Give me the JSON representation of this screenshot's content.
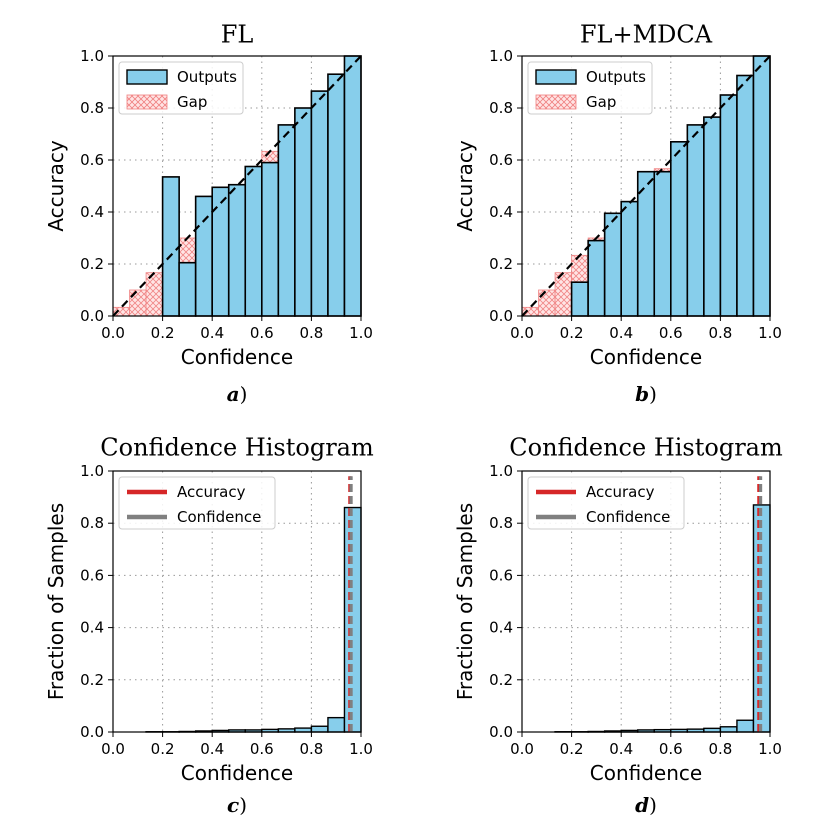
{
  "colors": {
    "outputs_fill": "#87ceeb",
    "gap_fill": "#ffd6d6",
    "gap_edge": "#f08080",
    "accuracy_line": "#d62728",
    "confidence_line": "#808080",
    "grid": "#999999"
  },
  "chart_data": [
    {
      "id": "a",
      "type": "bar",
      "title": "FL",
      "xlabel": "Confidence",
      "ylabel": "Accuracy",
      "caption_letter": "a",
      "caption_suffix": ")",
      "xlim": [
        0,
        1
      ],
      "ylim": [
        0,
        1
      ],
      "xticks": [
        "0.0",
        "0.2",
        "0.4",
        "0.6",
        "0.8",
        "1.0"
      ],
      "yticks": [
        "0.0",
        "0.2",
        "0.4",
        "0.6",
        "0.8",
        "1.0"
      ],
      "grid": true,
      "legend": {
        "placement": "top-left",
        "entries": [
          "Outputs",
          "Gap"
        ]
      },
      "bin_width": 0.0667,
      "bin_starts": [
        0.0,
        0.0667,
        0.1333,
        0.2,
        0.2667,
        0.3333,
        0.4,
        0.4667,
        0.5333,
        0.6,
        0.6667,
        0.7333,
        0.8,
        0.8667,
        0.9333
      ],
      "values": [
        0.0,
        0.0,
        0.0,
        0.535,
        0.205,
        0.46,
        0.495,
        0.505,
        0.575,
        0.59,
        0.735,
        0.8,
        0.865,
        0.93,
        1.0
      ]
    },
    {
      "id": "b",
      "type": "bar",
      "title": "FL+MDCA",
      "xlabel": "Confidence",
      "ylabel": "Accuracy",
      "caption_letter": "b",
      "caption_suffix": ")",
      "xlim": [
        0,
        1
      ],
      "ylim": [
        0,
        1
      ],
      "xticks": [
        "0.0",
        "0.2",
        "0.4",
        "0.6",
        "0.8",
        "1.0"
      ],
      "yticks": [
        "0.0",
        "0.2",
        "0.4",
        "0.6",
        "0.8",
        "1.0"
      ],
      "grid": true,
      "legend": {
        "placement": "top-left",
        "entries": [
          "Outputs",
          "Gap"
        ]
      },
      "bin_width": 0.0667,
      "bin_starts": [
        0.0,
        0.0667,
        0.1333,
        0.2,
        0.2667,
        0.3333,
        0.4,
        0.4667,
        0.5333,
        0.6,
        0.6667,
        0.7333,
        0.8,
        0.8667,
        0.9333
      ],
      "values": [
        0.0,
        0.0,
        0.0,
        0.13,
        0.29,
        0.395,
        0.44,
        0.555,
        0.555,
        0.67,
        0.735,
        0.765,
        0.85,
        0.925,
        1.0
      ]
    },
    {
      "id": "c",
      "type": "histogram",
      "title": "Confidence Histogram",
      "xlabel": "Confidence",
      "ylabel": "Fraction of Samples",
      "caption_letter": "c",
      "caption_suffix": ")",
      "xlim": [
        0,
        1
      ],
      "ylim": [
        0,
        1
      ],
      "xticks": [
        "0.0",
        "0.2",
        "0.4",
        "0.6",
        "0.8",
        "1.0"
      ],
      "yticks": [
        "0.0",
        "0.2",
        "0.4",
        "0.6",
        "0.8",
        "1.0"
      ],
      "grid": true,
      "legend": {
        "placement": "top-left",
        "entries": [
          "Accuracy",
          "Confidence"
        ]
      },
      "bin_width": 0.0667,
      "bin_starts": [
        0.0,
        0.0667,
        0.1333,
        0.2,
        0.2667,
        0.3333,
        0.4,
        0.4667,
        0.5333,
        0.6,
        0.6667,
        0.7333,
        0.8,
        0.8667,
        0.9333
      ],
      "values": [
        0.0,
        0.0,
        0.001,
        0.001,
        0.002,
        0.004,
        0.006,
        0.008,
        0.008,
        0.01,
        0.012,
        0.015,
        0.022,
        0.055,
        0.86
      ],
      "accuracy": 0.955,
      "confidence": 0.96
    },
    {
      "id": "d",
      "type": "histogram",
      "title": "Confidence Histogram",
      "xlabel": "Confidence",
      "ylabel": "Fraction of Samples",
      "caption_letter": "d",
      "caption_suffix": ")",
      "xlim": [
        0,
        1
      ],
      "ylim": [
        0,
        1
      ],
      "xticks": [
        "0.0",
        "0.2",
        "0.4",
        "0.6",
        "0.8",
        "1.0"
      ],
      "yticks": [
        "0.0",
        "0.2",
        "0.4",
        "0.6",
        "0.8",
        "1.0"
      ],
      "grid": true,
      "legend": {
        "placement": "top-left",
        "entries": [
          "Accuracy",
          "Confidence"
        ]
      },
      "bin_width": 0.0667,
      "bin_starts": [
        0.0,
        0.0667,
        0.1333,
        0.2,
        0.2667,
        0.3333,
        0.4,
        0.4667,
        0.5333,
        0.6,
        0.6667,
        0.7333,
        0.8,
        0.8667,
        0.9333
      ],
      "values": [
        0.0,
        0.0,
        0.001,
        0.001,
        0.002,
        0.004,
        0.006,
        0.008,
        0.009,
        0.01,
        0.011,
        0.014,
        0.02,
        0.045,
        0.87
      ],
      "accuracy": 0.955,
      "confidence": 0.962
    }
  ]
}
